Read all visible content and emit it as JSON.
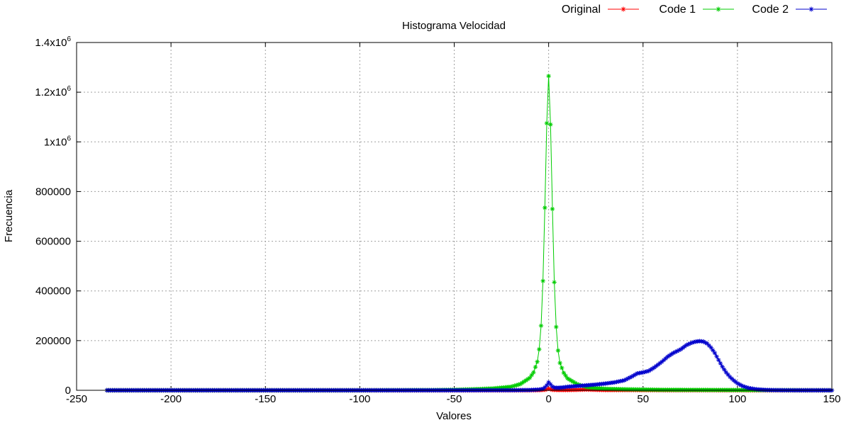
{
  "chart_data": {
    "type": "line",
    "title": "Histograma Velocidad",
    "xlabel": "Valores",
    "ylabel": "Frecuencia",
    "xlim": [
      -250,
      150
    ],
    "ylim": [
      0,
      1400000
    ],
    "grid": true,
    "legend_position": "top-right",
    "x_ticks": [
      -250,
      -200,
      -150,
      -100,
      -50,
      0,
      50,
      100,
      150
    ],
    "x_tick_labels": [
      "-250",
      "-200",
      "-150",
      "-100",
      "-50",
      "0",
      "50",
      "100",
      "150"
    ],
    "y_ticks": [
      0,
      200000,
      400000,
      600000,
      800000,
      1000000,
      1200000,
      1400000
    ],
    "y_tick_labels": [
      "0",
      "200000",
      "400000",
      "600000",
      "800000",
      "1x10^6",
      "1.2x10^6",
      "1.4x10^6"
    ],
    "series": [
      {
        "name": "Original",
        "color": "#ff0000",
        "marker": "star",
        "x": [
          -234,
          -200,
          -150,
          -100,
          -50,
          -20,
          -10,
          -5,
          -2,
          -1,
          0,
          1,
          2,
          5,
          10,
          15,
          20,
          25,
          30,
          35,
          40,
          45,
          48,
          50,
          52,
          55,
          60,
          65,
          70,
          75,
          80,
          83,
          85,
          88,
          90,
          95,
          100,
          105,
          110,
          115,
          120,
          130,
          150
        ],
        "y": [
          0,
          0,
          0,
          0,
          0,
          0,
          0,
          500,
          2000,
          4000,
          7000,
          4000,
          2000,
          1000,
          1000,
          2000,
          3000,
          2000,
          1000,
          1000,
          1000,
          1000,
          800,
          600,
          500,
          500,
          400,
          300,
          300,
          250,
          200,
          150,
          100,
          100,
          80,
          60,
          50,
          30,
          20,
          10,
          0,
          0,
          0
        ]
      },
      {
        "name": "Code 1",
        "color": "#00cc00",
        "marker": "star",
        "x": [
          -234,
          -200,
          -150,
          -100,
          -60,
          -50,
          -40,
          -30,
          -20,
          -15,
          -10,
          -8,
          -6,
          -5,
          -4,
          -3,
          -2,
          -1,
          0,
          1,
          2,
          3,
          4,
          5,
          6,
          8,
          10,
          15,
          20,
          25,
          30,
          40,
          50,
          60,
          80,
          100,
          120,
          150
        ],
        "y": [
          0,
          0,
          0,
          0,
          1000,
          2000,
          4000,
          7000,
          14000,
          25000,
          50000,
          72000,
          115000,
          165000,
          260000,
          440000,
          735000,
          1075000,
          1265000,
          1070000,
          730000,
          435000,
          255000,
          160000,
          110000,
          70000,
          48000,
          25000,
          13000,
          9000,
          6000,
          4000,
          3000,
          2000,
          1500,
          1000,
          500,
          0
        ]
      },
      {
        "name": "Code 2",
        "color": "#0000cc",
        "marker": "star",
        "x": [
          -234,
          -200,
          -150,
          -100,
          -50,
          -20,
          -10,
          -5,
          -3,
          -2,
          -1,
          0,
          1,
          2,
          3,
          5,
          8,
          10,
          15,
          20,
          25,
          30,
          35,
          40,
          44,
          47,
          50,
          53,
          56,
          60,
          63,
          66,
          70,
          73,
          76,
          78,
          80,
          82,
          84,
          86,
          88,
          90,
          92,
          94,
          96,
          98,
          100,
          103,
          106,
          110,
          115,
          120,
          130,
          140,
          150
        ],
        "y": [
          0,
          0,
          0,
          0,
          0,
          200,
          1000,
          3000,
          6000,
          12000,
          20000,
          32000,
          24000,
          15000,
          11000,
          10000,
          12000,
          14000,
          17000,
          20000,
          23000,
          27000,
          32000,
          40000,
          55000,
          68000,
          72000,
          78000,
          92000,
          115000,
          135000,
          150000,
          165000,
          182000,
          192000,
          196000,
          198000,
          196000,
          188000,
          172000,
          150000,
          122000,
          95000,
          72000,
          54000,
          40000,
          28000,
          16000,
          9000,
          4000,
          1500,
          500,
          0,
          0,
          0
        ]
      }
    ]
  }
}
